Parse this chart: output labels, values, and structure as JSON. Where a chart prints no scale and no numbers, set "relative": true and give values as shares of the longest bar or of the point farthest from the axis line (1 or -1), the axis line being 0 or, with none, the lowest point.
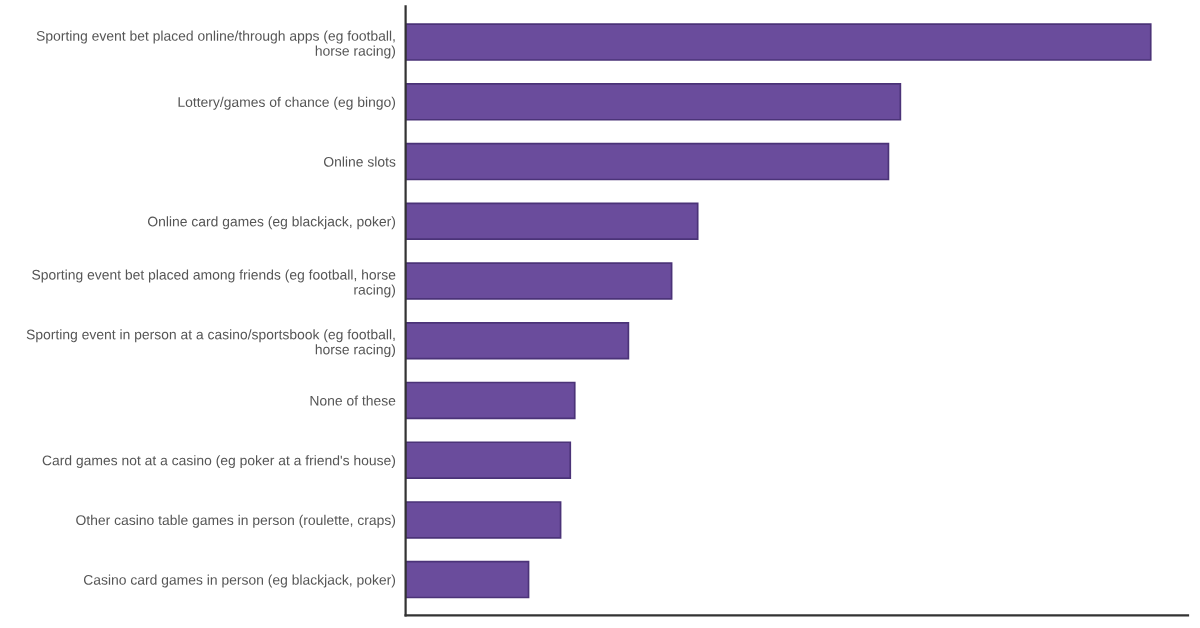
{
  "chart_data": {
    "type": "bar",
    "orientation": "horizontal",
    "relative": true,
    "color": "#6a4c9c",
    "categories": [
      "Sporting event bet placed online/through apps (eg football, horse racing)",
      "Lottery/games of chance (eg bingo)",
      "Online slots",
      "Online card games (eg blackjack, poker)",
      "Sporting event bet placed among friends (eg football, horse racing)",
      "Sporting event in person at a casino/sportsbook (eg football, horse racing)",
      "None of these",
      "Card games not at a casino (eg poker at a friend's house)",
      "Other casino table games in person (roulette, craps)",
      "Casino card games in person (eg blackjack, poker)"
    ],
    "values": [
      1,
      0.664,
      0.648,
      0.392,
      0.357,
      0.299,
      0.227,
      0.221,
      0.208,
      0.165
    ],
    "grid": false,
    "legend": false
  }
}
